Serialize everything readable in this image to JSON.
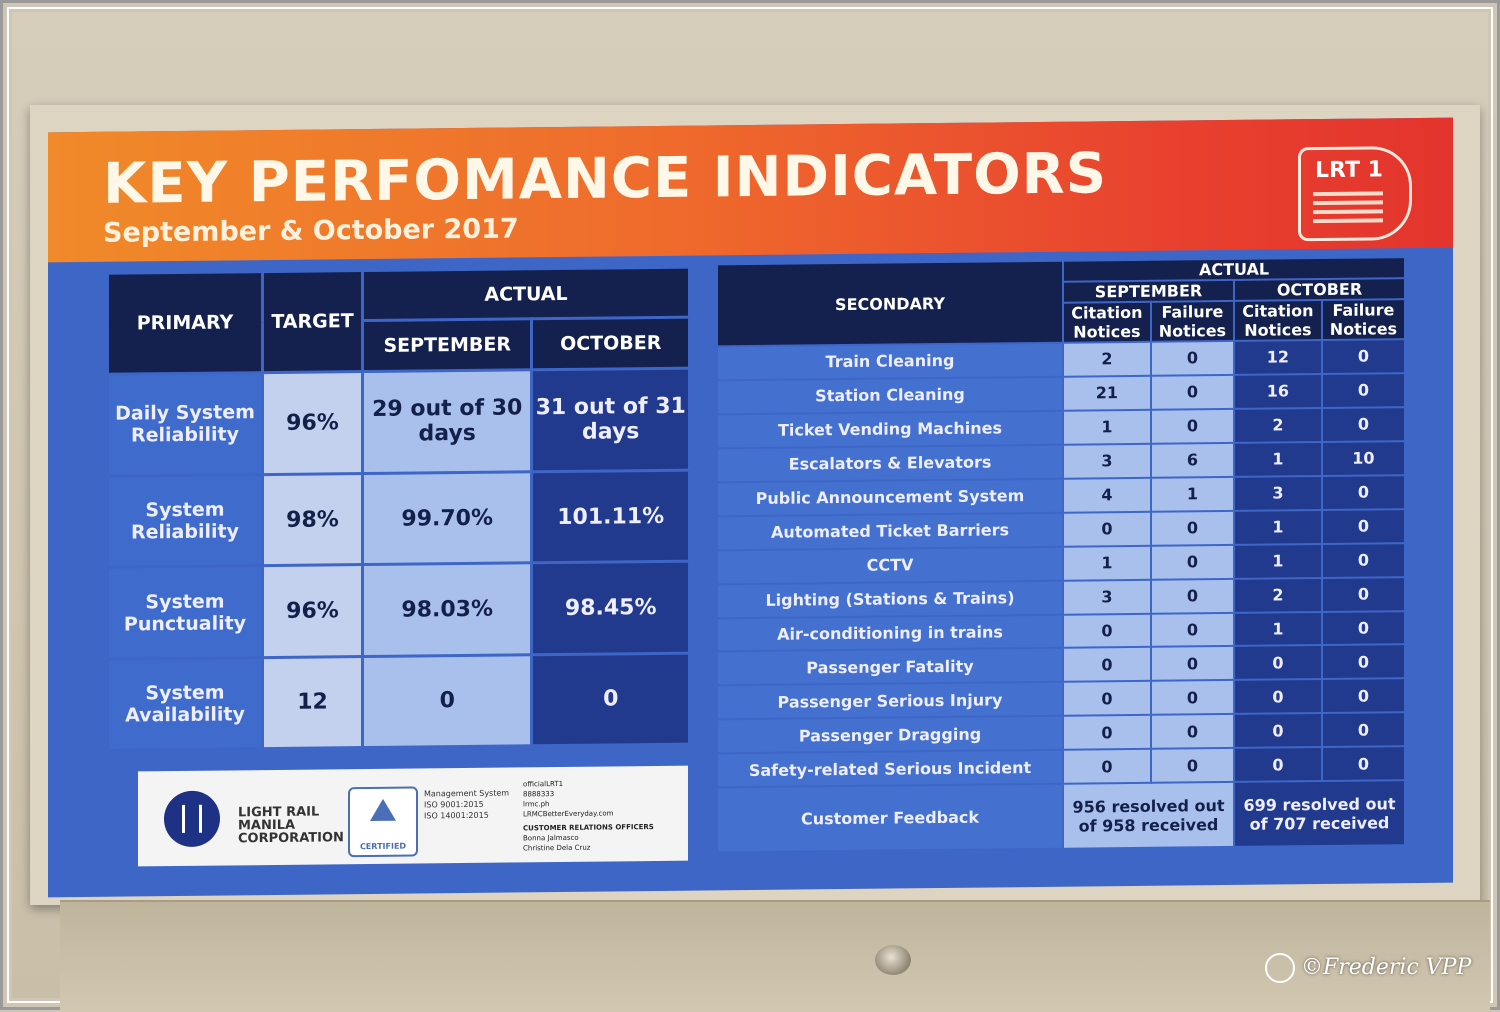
{
  "poster": {
    "title": "KEY PERFOMANCE INDICATORS",
    "subtitle": "September & October 2017",
    "logo": "LRT 1"
  },
  "primary_table": {
    "headers": {
      "primary": "PRIMARY",
      "target": "TARGET",
      "actual": "ACTUAL",
      "september": "SEPTEMBER",
      "october": "OCTOBER"
    },
    "rows": [
      {
        "label": "Daily System Reliability",
        "target": "96%",
        "september": "29 out of 30 days",
        "october": "31 out of 31 days"
      },
      {
        "label": "System Reliability",
        "target": "98%",
        "september": "99.70%",
        "october": "101.11%"
      },
      {
        "label": "System Punctuality",
        "target": "96%",
        "september": "98.03%",
        "october": "98.45%"
      },
      {
        "label": "System Availability",
        "target": "12",
        "september": "0",
        "october": "0"
      }
    ]
  },
  "secondary_table": {
    "headers": {
      "secondary": "SECONDARY",
      "actual": "ACTUAL",
      "september": "SEPTEMBER",
      "october": "OCTOBER",
      "citation": "Citation Notices",
      "failure": "Failure Notices"
    },
    "rows": [
      {
        "label": "Train Cleaning",
        "sep_c": "2",
        "sep_f": "0",
        "oct_c": "12",
        "oct_f": "0"
      },
      {
        "label": "Station Cleaning",
        "sep_c": "21",
        "sep_f": "0",
        "oct_c": "16",
        "oct_f": "0"
      },
      {
        "label": "Ticket Vending Machines",
        "sep_c": "1",
        "sep_f": "0",
        "oct_c": "2",
        "oct_f": "0"
      },
      {
        "label": "Escalators & Elevators",
        "sep_c": "3",
        "sep_f": "6",
        "oct_c": "1",
        "oct_f": "10"
      },
      {
        "label": "Public Announcement  System",
        "sep_c": "4",
        "sep_f": "1",
        "oct_c": "3",
        "oct_f": "0"
      },
      {
        "label": "Automated Ticket Barriers",
        "sep_c": "0",
        "sep_f": "0",
        "oct_c": "1",
        "oct_f": "0"
      },
      {
        "label": "CCTV",
        "sep_c": "1",
        "sep_f": "0",
        "oct_c": "1",
        "oct_f": "0"
      },
      {
        "label": "Lighting (Stations & Trains)",
        "sep_c": "3",
        "sep_f": "0",
        "oct_c": "2",
        "oct_f": "0"
      },
      {
        "label": "Air-conditioning in trains",
        "sep_c": "0",
        "sep_f": "0",
        "oct_c": "1",
        "oct_f": "0"
      },
      {
        "label": "Passenger Fatality",
        "sep_c": "0",
        "sep_f": "0",
        "oct_c": "0",
        "oct_f": "0"
      },
      {
        "label": "Passenger Serious Injury",
        "sep_c": "0",
        "sep_f": "0",
        "oct_c": "0",
        "oct_f": "0"
      },
      {
        "label": "Passenger Dragging",
        "sep_c": "0",
        "sep_f": "0",
        "oct_c": "0",
        "oct_f": "0"
      },
      {
        "label": "Safety-related Serious Incident",
        "sep_c": "0",
        "sep_f": "0",
        "oct_c": "0",
        "oct_f": "0"
      }
    ],
    "feedback": {
      "label": "Customer Feedback",
      "sep": "956 resolved out of 958 received",
      "oct": "699 resolved out of 707 received"
    }
  },
  "footer": {
    "company": "LIGHT RAIL MANILA CORPORATION",
    "cert_label": "CERTIFIED",
    "certs": [
      "Management System",
      "ISO 9001:2015",
      "ISO 14001:2015"
    ],
    "contact": [
      "officialLRT1",
      "8888333",
      "lrmc.ph",
      "LRMCBetterEveryday.com"
    ],
    "cro_title": "CUSTOMER RELATIONS OFFICERS",
    "officers": [
      "Bonna Jalmasco",
      "Christine Dela Cruz"
    ]
  },
  "watermark": "©Frederic VPP",
  "colors": {
    "header_orange": "#f08a2a",
    "header_red": "#e3342d",
    "panel_blue": "#3d66c7",
    "navy": "#14204d"
  }
}
